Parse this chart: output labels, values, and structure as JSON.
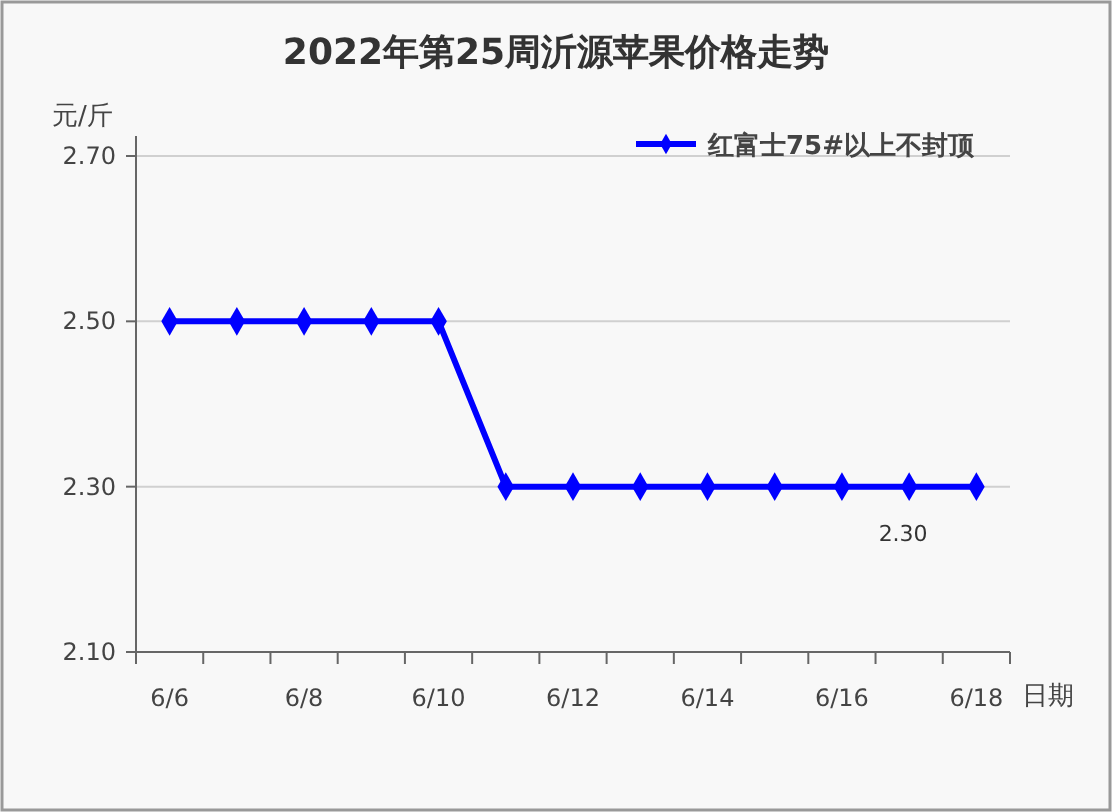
{
  "chart_data": {
    "type": "line",
    "title": "2022年第25周沂源苹果价格走势",
    "xlabel": "日期",
    "ylabel": "元/斤",
    "categories": [
      "6/6",
      null,
      "6/8",
      null,
      "6/10",
      null,
      "6/12",
      null,
      "6/14",
      null,
      "6/16",
      null,
      "6/18"
    ],
    "series": [
      {
        "name": "红富士75#以上不封顶",
        "color": "#0000ff",
        "values": [
          2.5,
          2.5,
          2.5,
          2.5,
          2.5,
          2.3,
          2.3,
          2.3,
          2.3,
          2.3,
          2.3,
          2.3,
          2.3
        ],
        "value_labels": [
          null,
          null,
          null,
          null,
          null,
          null,
          null,
          null,
          null,
          null,
          null,
          "2.30",
          null
        ]
      }
    ],
    "ylim": [
      2.1,
      2.7
    ],
    "yticks": [
      {
        "value": 2.1,
        "label": "2.10"
      },
      {
        "value": 2.3,
        "label": "2.30"
      },
      {
        "value": 2.5,
        "label": "2.50"
      },
      {
        "value": 2.7,
        "label": "2.70"
      }
    ],
    "grid": "y",
    "legend": "top right",
    "marker": "diamond",
    "line_style": "solid"
  }
}
